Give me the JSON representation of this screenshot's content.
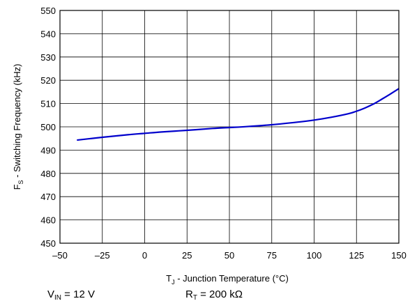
{
  "chart_data": {
    "type": "line",
    "xlabel": {
      "main": "T",
      "sub": "J",
      "rest": " - Junction Temperature (°C)"
    },
    "ylabel": {
      "main": "F",
      "sub": "S",
      "rest": " - Switching Frequency (kHz)"
    },
    "xlim": [
      -50,
      150
    ],
    "ylim": [
      450,
      550
    ],
    "xticks": [
      -50,
      -25,
      0,
      25,
      50,
      75,
      100,
      125,
      150
    ],
    "yticks": [
      450,
      460,
      470,
      480,
      490,
      500,
      510,
      520,
      530,
      540,
      550
    ],
    "xtick_labels": [
      "–50",
      "–25",
      "0",
      "25",
      "50",
      "75",
      "100",
      "125",
      "150"
    ],
    "ytick_labels": [
      "450",
      "460",
      "470",
      "480",
      "490",
      "500",
      "510",
      "520",
      "530",
      "540",
      "550"
    ],
    "grid": true,
    "series": [
      {
        "color": "#0000cc",
        "x": [
          -40,
          -25,
          -10,
          0,
          10,
          25,
          40,
          50,
          60,
          75,
          90,
          100,
          110,
          120,
          125,
          130,
          135,
          140,
          145,
          150
        ],
        "y": [
          494.3,
          495.5,
          496.6,
          497.2,
          497.8,
          498.5,
          499.3,
          499.7,
          500.1,
          500.9,
          502.0,
          502.9,
          504.1,
          505.6,
          506.7,
          508.1,
          509.8,
          511.9,
          514.1,
          516.4
        ]
      }
    ]
  },
  "conditions": {
    "vin": {
      "main": "V",
      "sub": "IN",
      "rest": " = 12 V"
    },
    "rt": {
      "main": "R",
      "sub": "T",
      "rest": " = 200 kΩ"
    }
  }
}
